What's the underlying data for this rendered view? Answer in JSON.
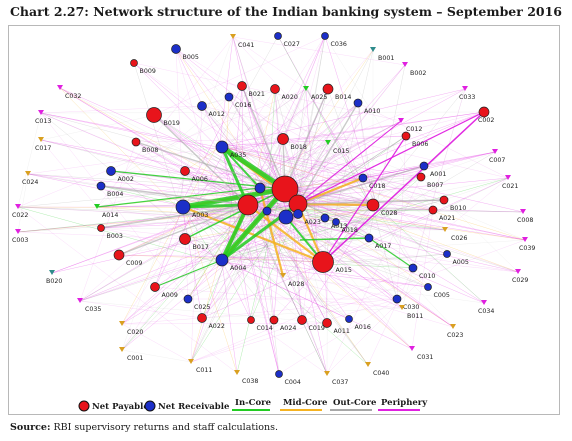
{
  "title": "Chart 2.27: Network structure of the Indian banking system – September 2016",
  "source": {
    "label": "Source:",
    "text": " RBI supervisory returns and staff calculations."
  },
  "legend": {
    "net_payable": "Net Payable",
    "net_receivable": "Net Receivable",
    "in_core": "In-Core",
    "mid_core": "Mid-Core",
    "out_core": "Out-Core",
    "periphery": "Periphery"
  },
  "colors": {
    "net_payable": "#e8141b",
    "net_receivable": "#1c2fc8",
    "in_core": "#22cc22",
    "mid_core": "#f5b220",
    "out_core": "#a8a8a8",
    "periphery": "#e020e0"
  },
  "nodes": [
    {
      "label": "C041",
      "type": "other",
      "color": "#d9a020"
    },
    {
      "label": "C027",
      "type": "receivable"
    },
    {
      "label": "C036",
      "type": "receivable"
    },
    {
      "label": "B005",
      "type": "receivable"
    },
    {
      "label": "B001",
      "type": "other",
      "color": "#2e8b8b"
    },
    {
      "label": "B009",
      "type": "payable"
    },
    {
      "label": "B002",
      "type": "other",
      "color": "#e020e0"
    },
    {
      "label": "C032",
      "type": "other",
      "color": "#e020e0"
    },
    {
      "label": "B021",
      "type": "payable"
    },
    {
      "label": "A020",
      "type": "payable"
    },
    {
      "label": "A025",
      "type": "other",
      "color": "#22cc22"
    },
    {
      "label": "B014",
      "type": "payable"
    },
    {
      "label": "C033",
      "type": "other",
      "color": "#e020e0"
    },
    {
      "label": "A012",
      "type": "receivable"
    },
    {
      "label": "C016",
      "type": "receivable"
    },
    {
      "label": "A010",
      "type": "receivable"
    },
    {
      "label": "C013",
      "type": "other",
      "color": "#e020e0"
    },
    {
      "label": "B019",
      "type": "payable"
    },
    {
      "label": "C012",
      "type": "other",
      "color": "#e020e0"
    },
    {
      "label": "C002",
      "type": "payable"
    },
    {
      "label": "C017",
      "type": "other",
      "color": "#d9a020"
    },
    {
      "label": "B008",
      "type": "payable"
    },
    {
      "label": "B018",
      "type": "payable"
    },
    {
      "label": "C015",
      "type": "other",
      "color": "#22cc22"
    },
    {
      "label": "B006",
      "type": "payable"
    },
    {
      "label": "A035",
      "type": "receivable"
    },
    {
      "label": "C007",
      "type": "other",
      "color": "#e020e0"
    },
    {
      "label": "C024",
      "type": "other",
      "color": "#d9a020"
    },
    {
      "label": "A002",
      "type": "receivable"
    },
    {
      "label": "A006",
      "type": "payable"
    },
    {
      "label": "A001",
      "type": "receivable"
    },
    {
      "label": "B007",
      "type": "payable"
    },
    {
      "label": "C021",
      "type": "other",
      "color": "#e020e0"
    },
    {
      "label": "B004",
      "type": "receivable"
    },
    {
      "label": "B010",
      "type": "payable"
    },
    {
      "label": "C018",
      "type": "receivable"
    },
    {
      "label": "A014",
      "type": "other",
      "color": "#22cc22"
    },
    {
      "label": "A021",
      "type": "payable"
    },
    {
      "label": "C022",
      "type": "other",
      "color": "#e020e0"
    },
    {
      "label": "A003",
      "type": "receivable"
    },
    {
      "label": "C028",
      "type": "payable"
    },
    {
      "label": "B003",
      "type": "payable"
    },
    {
      "label": "A013",
      "type": "receivable"
    },
    {
      "label": "C026",
      "type": "other",
      "color": "#d9a020"
    },
    {
      "label": "C008",
      "type": "other",
      "color": "#e020e0"
    },
    {
      "label": "C003",
      "type": "other",
      "color": "#e020e0"
    },
    {
      "label": "B017",
      "type": "payable"
    },
    {
      "label": "A018",
      "type": "receivable"
    },
    {
      "label": "A023",
      "type": "receivable"
    },
    {
      "label": "A017",
      "type": "receivable"
    },
    {
      "label": "C039",
      "type": "other",
      "color": "#e020e0"
    },
    {
      "label": "C009",
      "type": "payable"
    },
    {
      "label": "A004",
      "type": "receivable"
    },
    {
      "label": "A015",
      "type": "payable"
    },
    {
      "label": "A005",
      "type": "receivable"
    },
    {
      "label": "B020",
      "type": "other",
      "color": "#2e8b8b"
    },
    {
      "label": "C010",
      "type": "receivable"
    },
    {
      "label": "A028",
      "type": "other",
      "color": "#d9a020"
    },
    {
      "label": "C029",
      "type": "other",
      "color": "#e020e0"
    },
    {
      "label": "A009",
      "type": "payable"
    },
    {
      "label": "C005",
      "type": "receivable"
    },
    {
      "label": "C030",
      "type": "receivable"
    },
    {
      "label": "C035",
      "type": "other",
      "color": "#e020e0"
    },
    {
      "label": "C025",
      "type": "receivable"
    },
    {
      "label": "B011",
      "type": "other",
      "color": "#d9a020"
    },
    {
      "label": "C034",
      "type": "other",
      "color": "#e020e0"
    },
    {
      "label": "A022",
      "type": "payable"
    },
    {
      "label": "C014",
      "type": "payable"
    },
    {
      "label": "A024",
      "type": "payable"
    },
    {
      "label": "C019",
      "type": "payable"
    },
    {
      "label": "A011",
      "type": "payable"
    },
    {
      "label": "A016",
      "type": "receivable"
    },
    {
      "label": "C023",
      "type": "other",
      "color": "#d9a020"
    },
    {
      "label": "C020",
      "type": "other",
      "color": "#d9a020"
    },
    {
      "label": "C001",
      "type": "other",
      "color": "#d9a020"
    },
    {
      "label": "C031",
      "type": "other",
      "color": "#e020e0"
    },
    {
      "label": "C011",
      "type": "other",
      "color": "#d9a020"
    },
    {
      "label": "C040",
      "type": "other",
      "color": "#d9a020"
    },
    {
      "label": "C038",
      "type": "other",
      "color": "#d9a020"
    },
    {
      "label": "C004",
      "type": "receivable"
    },
    {
      "label": "C037",
      "type": "other",
      "color": "#d9a020"
    }
  ]
}
